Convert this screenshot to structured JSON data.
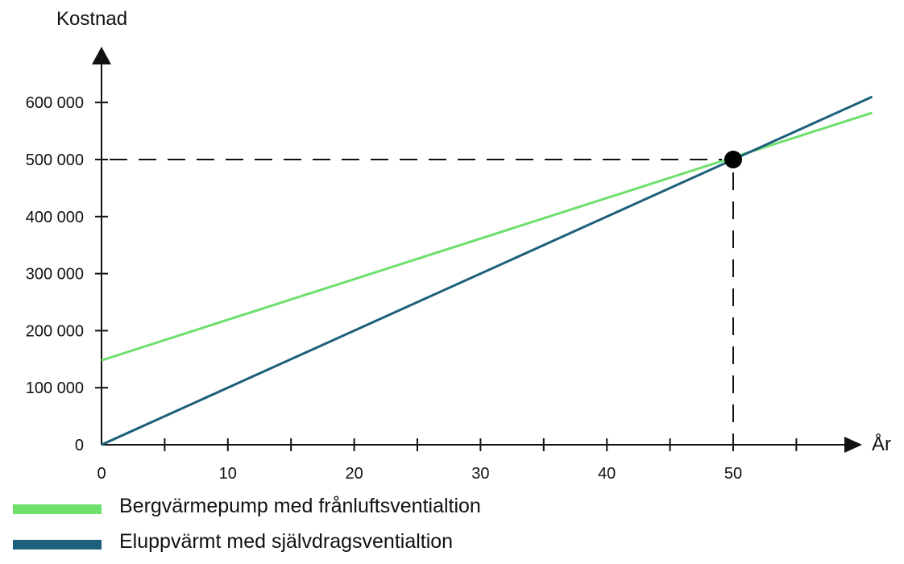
{
  "chart_data": {
    "type": "line",
    "xlabel": "År",
    "ylabel": "Kostnad",
    "xlim": [
      0,
      61
    ],
    "ylim": [
      0,
      650000
    ],
    "x_ticks": [
      0,
      10,
      20,
      30,
      40,
      50
    ],
    "x_minor_ticks": [
      5,
      15,
      25,
      35,
      45,
      55
    ],
    "y_ticks": [
      0,
      100000,
      200000,
      300000,
      400000,
      500000,
      600000
    ],
    "y_tick_labels": [
      "0",
      "100 000",
      "200 000",
      "300 000",
      "400 000",
      "500 000",
      "600 000"
    ],
    "series": [
      {
        "name": "Bergvärmepump med frånluftsventialtion",
        "color": "#6ddf6d",
        "x": [
          0,
          61
        ],
        "values": [
          148000,
          582000
        ]
      },
      {
        "name": "Eluppvärmt med självdragsventialtion",
        "color": "#1e5f7c",
        "x": [
          0,
          61
        ],
        "values": [
          0,
          610000
        ]
      }
    ],
    "intersection": {
      "x": 50,
      "y": 500000
    },
    "grid": false,
    "legend_position": "bottom-left"
  }
}
